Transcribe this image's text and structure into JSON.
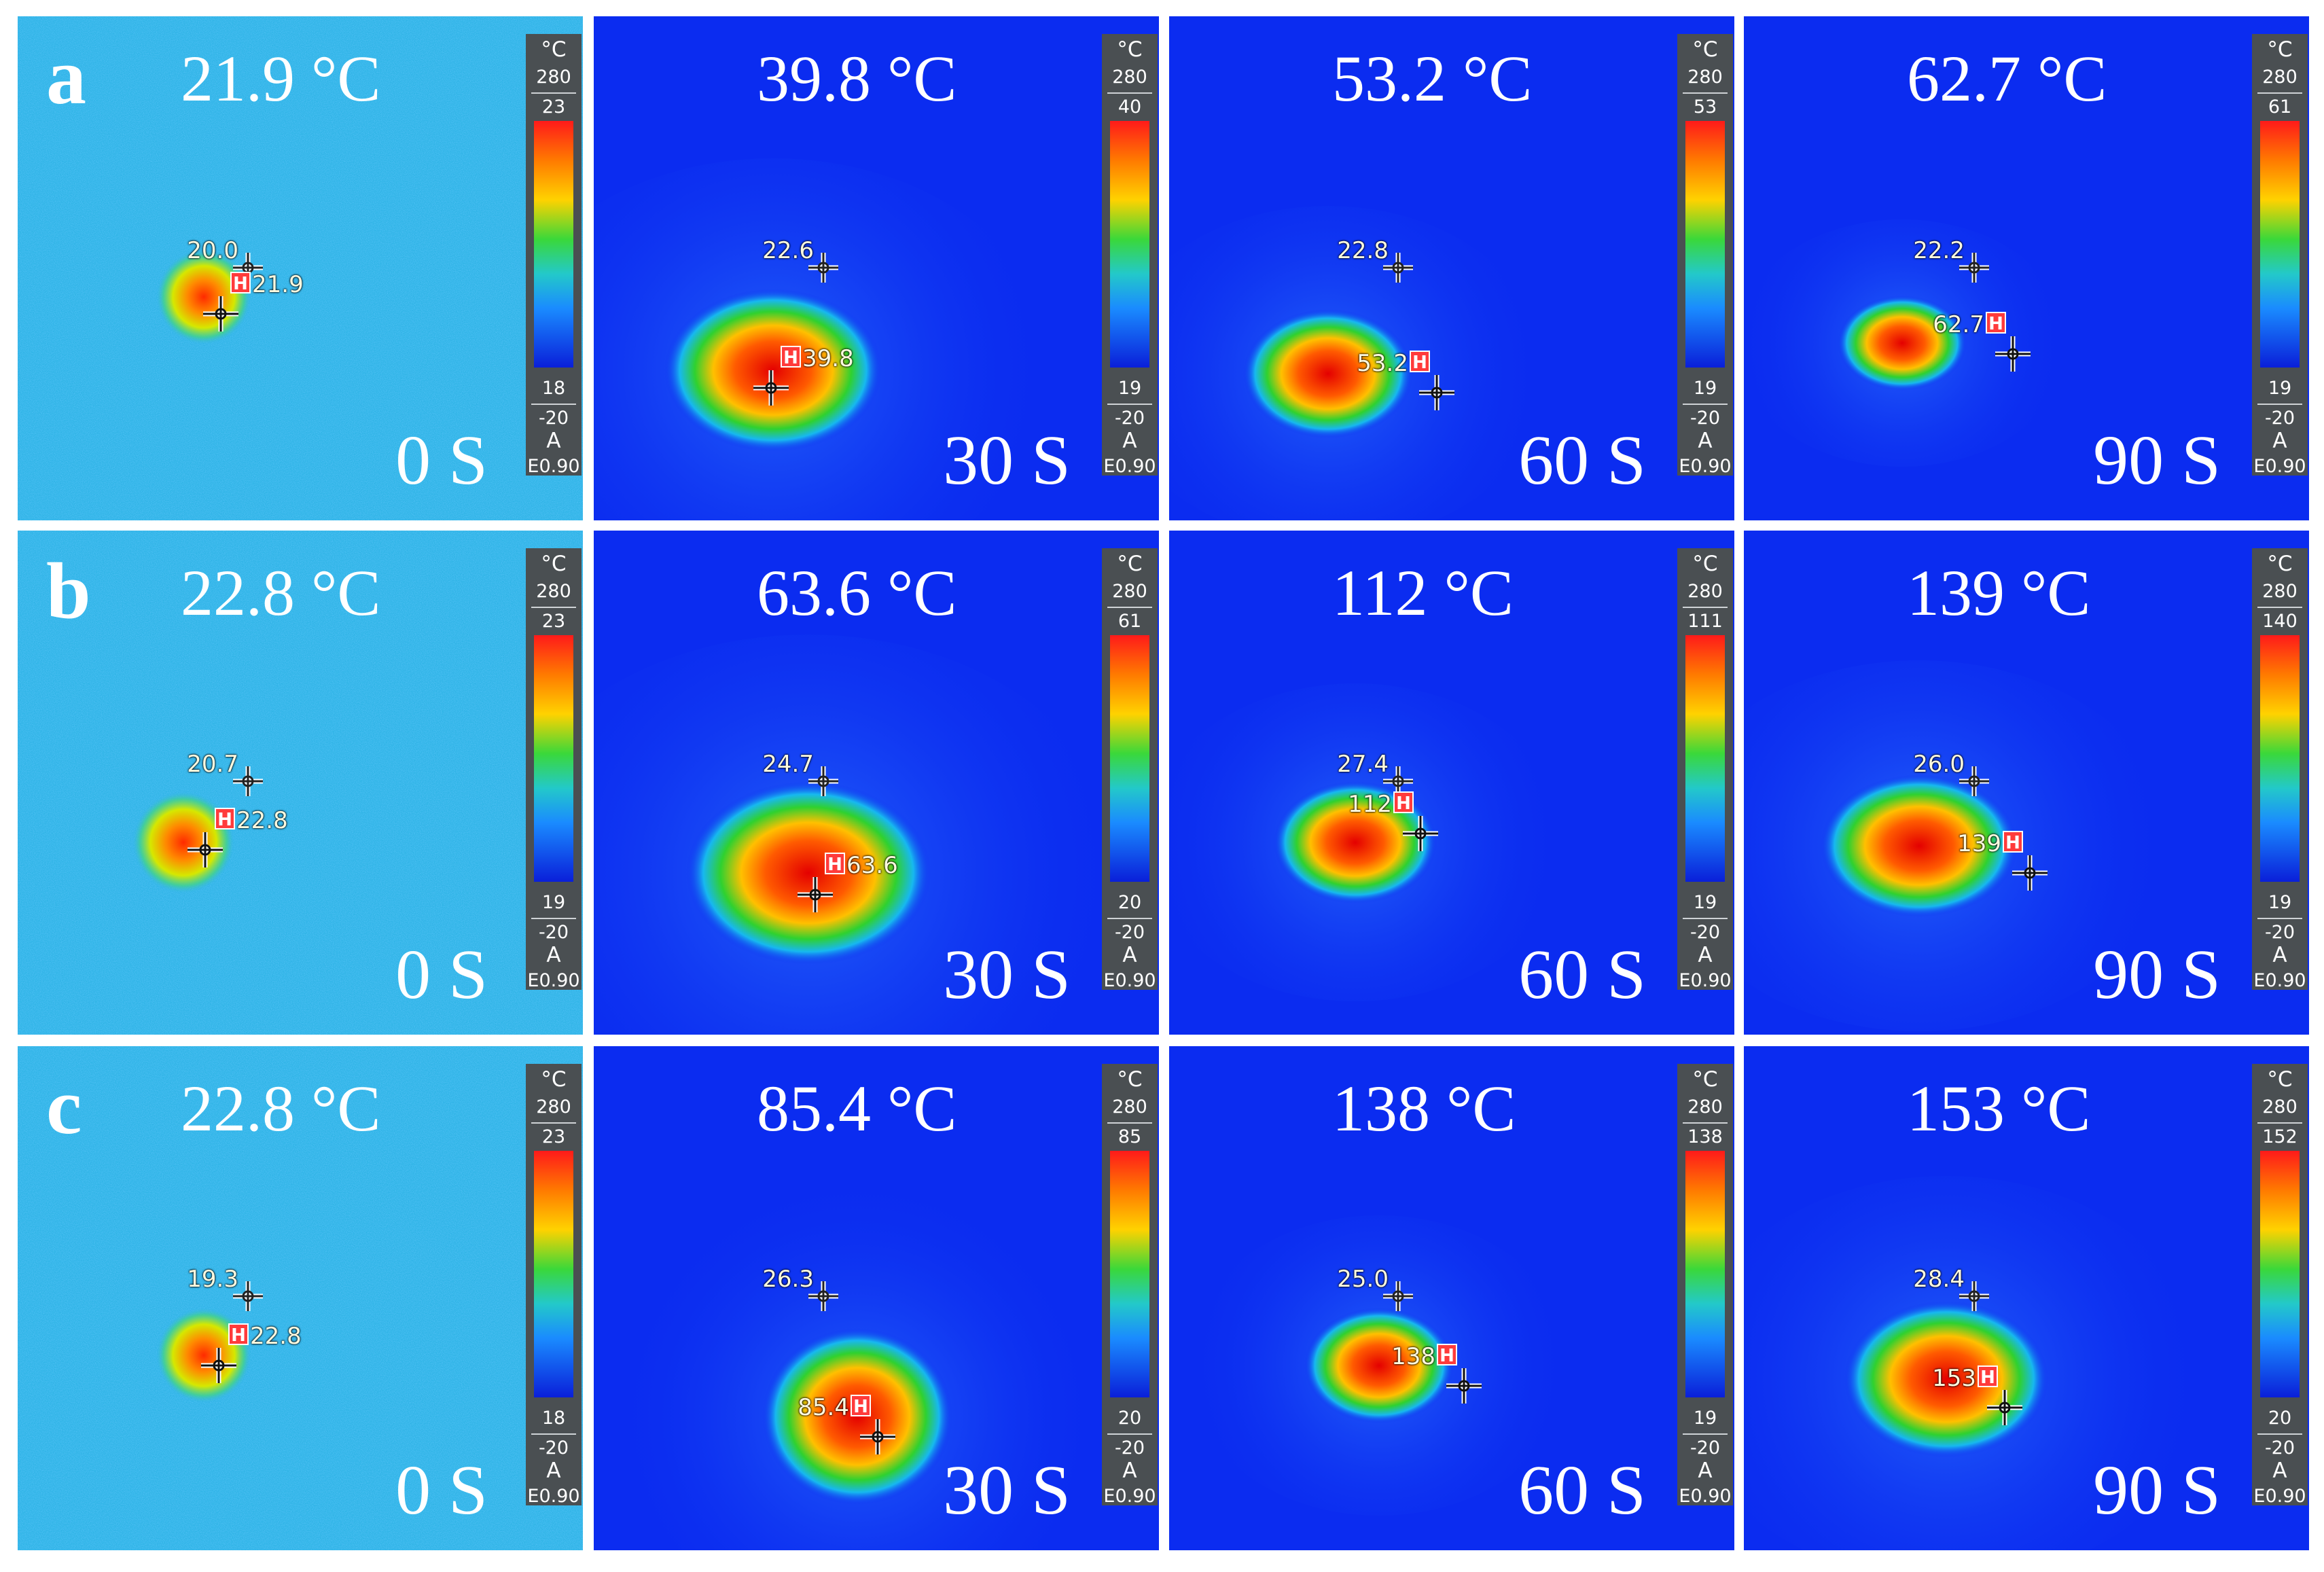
{
  "figure": {
    "colors": {
      "background": "#ffffff",
      "cold_noise": "#2fb4e6",
      "field_blue": "#0b2cf0",
      "hot_core": "#e40000",
      "colorbar_panel": "#4a4f52"
    },
    "colorbar_common": {
      "unit": "°C",
      "fixed_max": "280",
      "fixed_min": "-20",
      "mode": "A",
      "emissivity": "E0.90"
    },
    "rows": [
      {
        "letter": "a",
        "panels": [
          {
            "title": "21.9 °C",
            "time": "0 S",
            "scale_max": "23",
            "scale_min": "18",
            "ref_value": "20.0",
            "hot_value": "21.9",
            "label_side": "right",
            "noisy": true
          },
          {
            "title": "39.8 °C",
            "time": "30 S",
            "scale_max": "40",
            "scale_min": "19",
            "ref_value": "22.6",
            "hot_value": "39.8",
            "label_side": "right",
            "noisy": false
          },
          {
            "title": "53.2 °C",
            "time": "60 S",
            "scale_max": "53",
            "scale_min": "19",
            "ref_value": "22.8",
            "hot_value": "53.2",
            "label_side": "left",
            "noisy": false
          },
          {
            "title": "62.7 °C",
            "time": "90 S",
            "scale_max": "61",
            "scale_min": "19",
            "ref_value": "22.2",
            "hot_value": "62.7",
            "label_side": "left",
            "noisy": false
          }
        ]
      },
      {
        "letter": "b",
        "panels": [
          {
            "title": "22.8 °C",
            "time": "0 S",
            "scale_max": "23",
            "scale_min": "19",
            "ref_value": "20.7",
            "hot_value": "22.8",
            "label_side": "right",
            "noisy": true
          },
          {
            "title": "63.6 °C",
            "time": "30 S",
            "scale_max": "61",
            "scale_min": "20",
            "ref_value": "24.7",
            "hot_value": "63.6",
            "label_side": "right",
            "noisy": false
          },
          {
            "title": "112 °C",
            "time": "60 S",
            "scale_max": "111",
            "scale_min": "19",
            "ref_value": "27.4",
            "hot_value": "112",
            "label_side": "left",
            "noisy": false
          },
          {
            "title": "139 °C",
            "time": "90 S",
            "scale_max": "140",
            "scale_min": "19",
            "ref_value": "26.0",
            "hot_value": "139",
            "label_side": "left",
            "noisy": false
          }
        ]
      },
      {
        "letter": "c",
        "panels": [
          {
            "title": "22.8 °C",
            "time": "0 S",
            "scale_max": "23",
            "scale_min": "18",
            "ref_value": "19.3",
            "hot_value": "22.8",
            "label_side": "right",
            "noisy": true
          },
          {
            "title": "85.4 °C",
            "time": "30 S",
            "scale_max": "85",
            "scale_min": "20",
            "ref_value": "26.3",
            "hot_value": "85.4",
            "label_side": "left",
            "noisy": false
          },
          {
            "title": "138 °C",
            "time": "60 S",
            "scale_max": "138",
            "scale_min": "19",
            "ref_value": "25.0",
            "hot_value": "138",
            "label_side": "left",
            "noisy": false
          },
          {
            "title": "153 °C",
            "time": "90 S",
            "scale_max": "152",
            "scale_min": "20",
            "ref_value": "28.4",
            "hot_value": "153",
            "label_side": "left",
            "noisy": false
          }
        ]
      }
    ]
  }
}
